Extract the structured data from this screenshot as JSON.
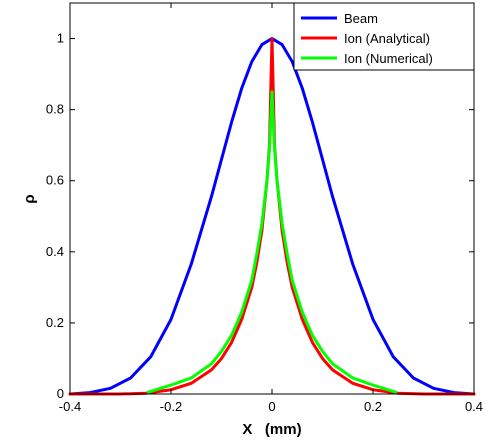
{
  "chart_data": {
    "type": "line",
    "title": "",
    "xlabel": "X   (mm)",
    "ylabel": "ρ",
    "xlim": [
      -0.4,
      0.4
    ],
    "ylim": [
      0,
      1.1
    ],
    "xticks": [
      -0.4,
      -0.2,
      0,
      0.2,
      0.4
    ],
    "xtick_labels": [
      "-0.4",
      "-0.2",
      "0",
      "0.2",
      "0.4"
    ],
    "yticks": [
      0,
      0.2,
      0.4,
      0.6,
      0.8,
      1
    ],
    "ytick_labels": [
      "0",
      "0.2",
      "0.4",
      "0.6",
      "0.8",
      "1"
    ],
    "grid": false,
    "legend_position": "top-right",
    "series": [
      {
        "name": "Beam",
        "color": "#0000ff",
        "x": [
          -0.4,
          -0.36,
          -0.32,
          -0.28,
          -0.24,
          -0.2,
          -0.16,
          -0.12,
          -0.1,
          -0.08,
          -0.06,
          -0.04,
          -0.02,
          0.0,
          0.02,
          0.04,
          0.06,
          0.08,
          0.1,
          0.12,
          0.16,
          0.2,
          0.24,
          0.28,
          0.32,
          0.36,
          0.4
        ],
        "y": [
          0.0,
          0.004,
          0.016,
          0.045,
          0.105,
          0.21,
          0.365,
          0.555,
          0.66,
          0.765,
          0.86,
          0.935,
          0.983,
          1.0,
          0.983,
          0.935,
          0.86,
          0.765,
          0.66,
          0.555,
          0.365,
          0.21,
          0.105,
          0.045,
          0.016,
          0.004,
          0.0
        ]
      },
      {
        "name": "Ion (Analytical)",
        "color": "#ff0000",
        "x": [
          -0.4,
          -0.3,
          -0.25,
          -0.2,
          -0.16,
          -0.12,
          -0.1,
          -0.08,
          -0.06,
          -0.04,
          -0.03,
          -0.02,
          -0.01,
          -0.005,
          0.0,
          0.005,
          0.01,
          0.02,
          0.03,
          0.04,
          0.06,
          0.08,
          0.1,
          0.12,
          0.16,
          0.2,
          0.25,
          0.3,
          0.4
        ],
        "y": [
          0.0,
          0.0,
          0.002,
          0.012,
          0.03,
          0.068,
          0.1,
          0.145,
          0.21,
          0.3,
          0.37,
          0.46,
          0.6,
          0.7,
          1.0,
          0.7,
          0.6,
          0.46,
          0.37,
          0.3,
          0.21,
          0.145,
          0.1,
          0.068,
          0.03,
          0.012,
          0.002,
          0.0,
          0.0
        ]
      },
      {
        "name": "Ion (Numerical)",
        "color": "#00ff00",
        "x": [
          -0.245,
          -0.2,
          -0.16,
          -0.12,
          -0.1,
          -0.08,
          -0.06,
          -0.04,
          -0.03,
          -0.02,
          -0.01,
          -0.005,
          0.0,
          0.005,
          0.01,
          0.02,
          0.03,
          0.04,
          0.06,
          0.08,
          0.1,
          0.12,
          0.16,
          0.2,
          0.245
        ],
        "y": [
          0.005,
          0.025,
          0.045,
          0.085,
          0.12,
          0.165,
          0.23,
          0.32,
          0.395,
          0.48,
          0.6,
          0.69,
          0.85,
          0.69,
          0.6,
          0.48,
          0.395,
          0.32,
          0.23,
          0.165,
          0.12,
          0.085,
          0.045,
          0.025,
          0.005
        ]
      }
    ]
  }
}
